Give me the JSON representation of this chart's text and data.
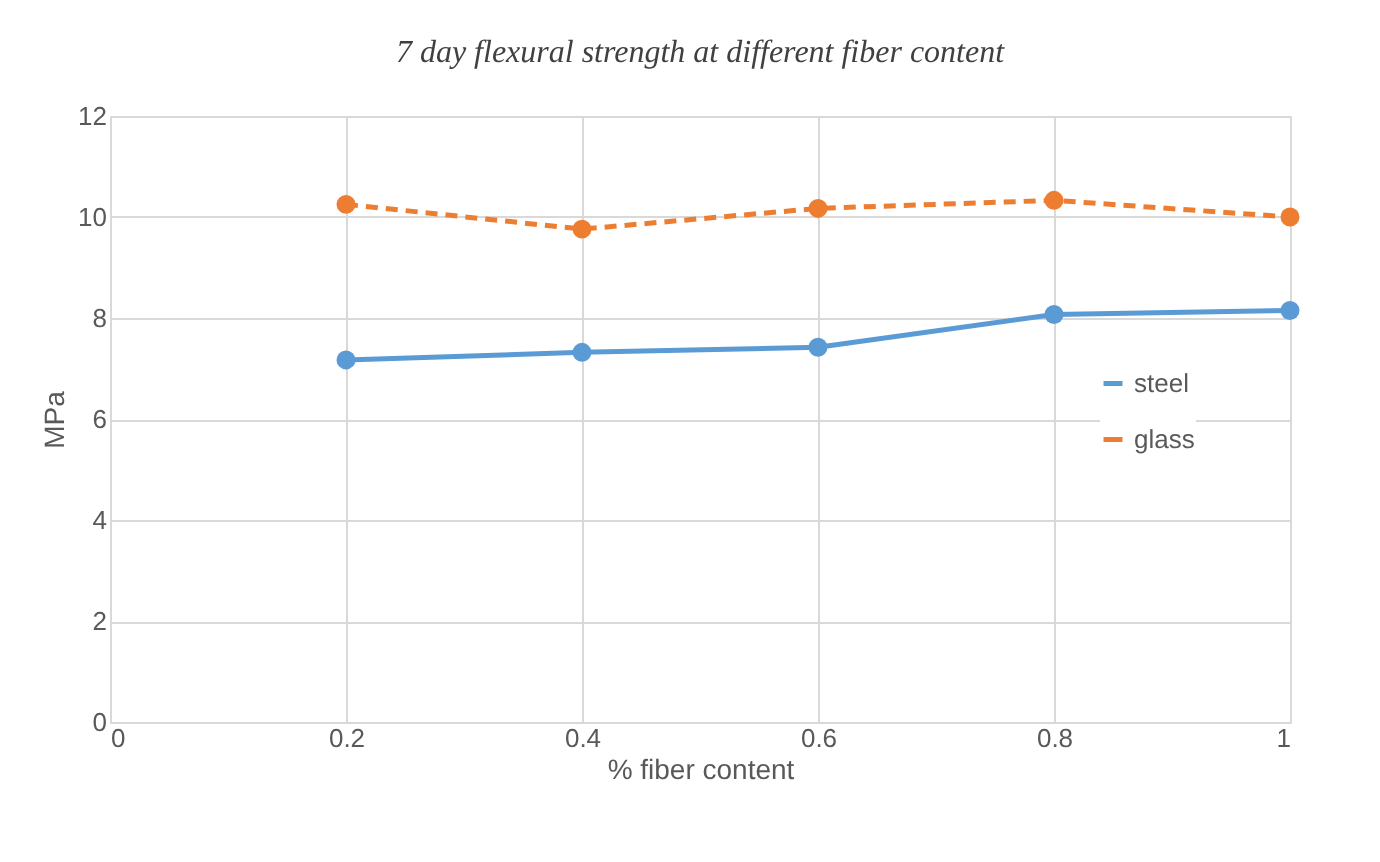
{
  "chart_data": {
    "type": "line",
    "title": "7 day flexural strength at different fiber content",
    "xlabel": "% fiber content",
    "ylabel": "MPa",
    "x": [
      0.2,
      0.4,
      0.6,
      0.8,
      1
    ],
    "series": [
      {
        "name": "steel",
        "color": "#5b9bd5",
        "line_style": "solid",
        "values": [
          7.17,
          7.32,
          7.42,
          8.07,
          8.15
        ]
      },
      {
        "name": "glass",
        "color": "#ed7d31",
        "line_style": "dashed",
        "values": [
          10.25,
          9.76,
          10.17,
          10.33,
          10.0
        ]
      }
    ],
    "xlim": [
      0,
      1
    ],
    "xticks": [
      0,
      0.2,
      0.4,
      0.6,
      0.8,
      1
    ],
    "ylim": [
      0,
      12
    ],
    "yticks": [
      0,
      2,
      4,
      6,
      8,
      10,
      12
    ],
    "grid": true,
    "legend": "right",
    "marker": "circle"
  }
}
